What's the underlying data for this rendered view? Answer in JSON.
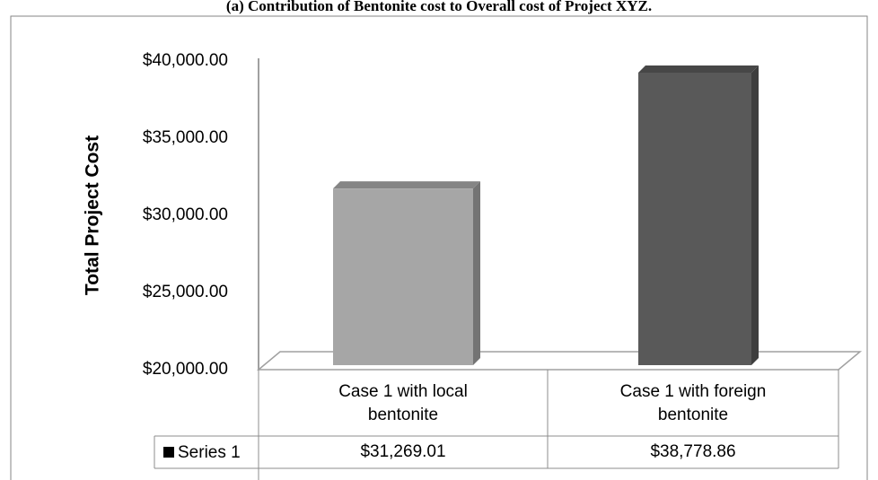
{
  "chart_data": {
    "type": "bar3d",
    "title": "(a) Contribution of Bentonite cost to Overall cost of Project XYZ.",
    "y_label": "Total Project Cost",
    "categories": [
      "Case 1 with local bentonite",
      "Case 1 with foreign bentonite"
    ],
    "series": [
      {
        "name": "Series 1",
        "color": "#000000",
        "colors": [
          "#a6a6a6",
          "#595959"
        ],
        "values": [
          31269.01,
          38778.86
        ],
        "value_labels": [
          "$31,269.01",
          "$38,778.86"
        ]
      }
    ],
    "ylim": [
      20000,
      40000
    ],
    "yticks": [
      {
        "value": 20000,
        "label": "$20,000.00"
      },
      {
        "value": 25000,
        "label": "$25,000.00"
      },
      {
        "value": 30000,
        "label": "$30,000.00"
      },
      {
        "value": 35000,
        "label": "$35,000.00"
      },
      {
        "value": 40000,
        "label": "$40,000.00"
      }
    ],
    "data_table": true
  }
}
